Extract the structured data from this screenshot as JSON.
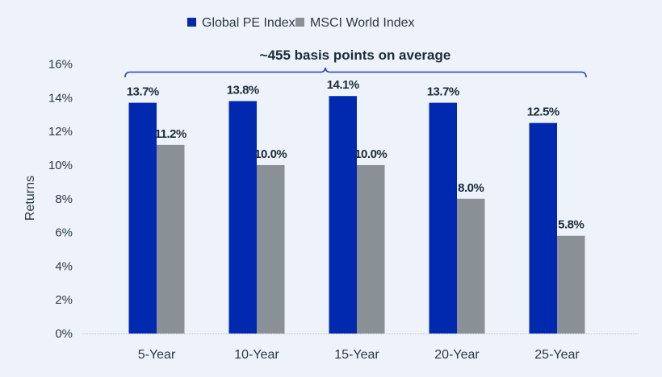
{
  "chart_data": {
    "type": "bar",
    "title": "",
    "xlabel": "",
    "ylabel": "Returns",
    "ylim": [
      0,
      16
    ],
    "yticks": [
      0,
      2,
      4,
      6,
      8,
      10,
      12,
      14,
      16
    ],
    "ytick_labels": [
      "0%",
      "2%",
      "4%",
      "6%",
      "8%",
      "10%",
      "12%",
      "14%",
      "16%"
    ],
    "grid": false,
    "legend_position": "top-center",
    "categories": [
      "5-Year",
      "10-Year",
      "15-Year",
      "20-Year",
      "25-Year"
    ],
    "series": [
      {
        "name": "Global PE Index",
        "color": "#0029b0",
        "values": [
          13.7,
          13.8,
          14.1,
          13.7,
          12.5
        ],
        "labels": [
          "13.7%",
          "13.8%",
          "14.1%",
          "13.7%",
          "12.5%"
        ]
      },
      {
        "name": "MSCI World Index",
        "color": "#899196",
        "values": [
          11.2,
          10.0,
          10.0,
          8.0,
          5.8
        ],
        "labels": [
          "11.2%",
          "10.0%",
          "10.0%",
          "8.0%",
          "5.8%"
        ]
      }
    ],
    "annotation": "~455 basis points on average"
  }
}
